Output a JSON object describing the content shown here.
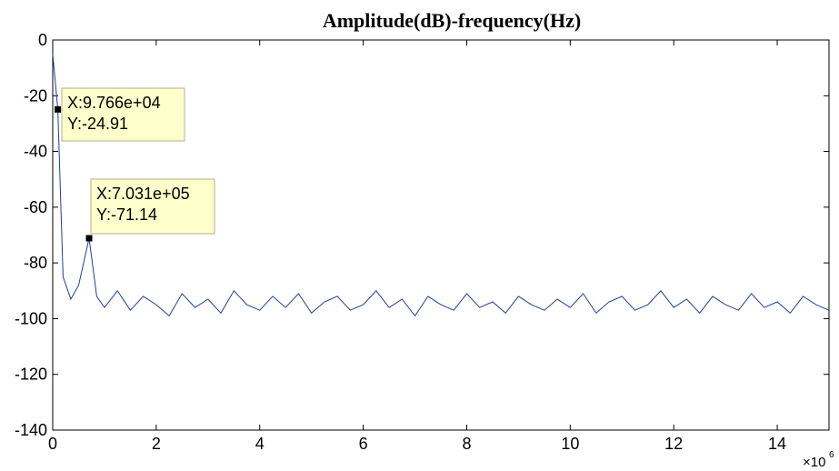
{
  "chart_data": {
    "type": "line",
    "title": "Amplitude(dB)-frequency(Hz)",
    "xlabel": "",
    "ylabel": "",
    "xlim": [
      0,
      15000000
    ],
    "ylim": [
      -140,
      0
    ],
    "x_ticks": [
      0,
      2,
      4,
      6,
      8,
      10,
      12,
      14
    ],
    "x_tick_labels": [
      "0",
      "2",
      "4",
      "6",
      "8",
      "10",
      "12",
      "14"
    ],
    "x_multiplier_base": "×10",
    "x_multiplier_exp": "6",
    "y_ticks": [
      0,
      -20,
      -40,
      -60,
      -80,
      -100,
      -120,
      -140
    ],
    "y_tick_labels": [
      "0",
      "-20",
      "-40",
      "-60",
      "-80",
      "-100",
      "-120",
      "-140"
    ],
    "grid": false,
    "line_color": "#1f3f99",
    "datatip_fill": "#ffffcc",
    "datatips": [
      {
        "x": 97660,
        "y": -24.91,
        "line1": "X:9.766e+04",
        "line2": "Y:-24.91"
      },
      {
        "x": 703100,
        "y": -71.14,
        "line1": "X:7.031e+05",
        "line2": "Y:-71.14"
      }
    ],
    "series": [
      {
        "x": [
          0,
          97660,
          200000,
          350000,
          500000,
          703100,
          850000,
          1000000,
          1250000,
          1500000,
          1750000,
          2000000,
          2250000,
          2500000,
          2750000,
          3000000,
          3250000,
          3500000,
          3750000,
          4000000,
          4250000,
          4500000,
          4750000,
          5000000,
          5250000,
          5500000,
          5750000,
          6000000,
          6250000,
          6500000,
          6750000,
          7000000,
          7250000,
          7500000,
          7750000,
          8000000,
          8250000,
          8500000,
          8750000,
          9000000,
          9250000,
          9500000,
          9750000,
          10000000,
          10250000,
          10500000,
          10750000,
          11000000,
          11250000,
          11500000,
          11750000,
          12000000,
          12250000,
          12500000,
          12750000,
          13000000,
          13250000,
          13500000,
          13750000,
          14000000,
          14250000,
          14500000,
          14750000,
          15000000
        ],
        "y": [
          -5,
          -24.91,
          -85,
          -93,
          -88,
          -71.14,
          -92,
          -96,
          -90,
          -97,
          -92,
          -95,
          -99,
          -91,
          -96,
          -93,
          -98,
          -90,
          -95,
          -97,
          -92,
          -96,
          -91,
          -98,
          -94,
          -92,
          -97,
          -95,
          -90,
          -96,
          -93,
          -99,
          -92,
          -95,
          -97,
          -91,
          -96,
          -94,
          -98,
          -92,
          -95,
          -97,
          -93,
          -96,
          -91,
          -98,
          -94,
          -92,
          -97,
          -95,
          -90,
          -96,
          -93,
          -98,
          -92,
          -95,
          -97,
          -91,
          -96,
          -94,
          -98,
          -92,
          -95,
          -97
        ]
      }
    ]
  }
}
